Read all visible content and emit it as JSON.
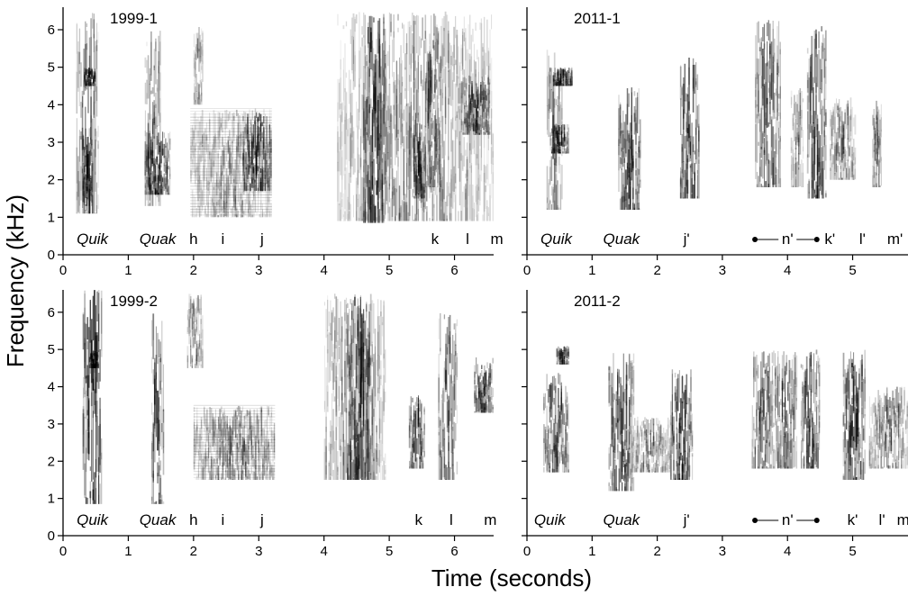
{
  "figure": {
    "ylabel": "Frequency (kHz)",
    "xlabel": "Time (seconds)"
  },
  "chart_data": [
    {
      "type": "heatmap",
      "title": "1999-1",
      "x_ticks": [
        0,
        1,
        2,
        3,
        4,
        5,
        6
      ],
      "y_ticks": [
        0,
        1,
        2,
        3,
        4,
        5,
        6
      ],
      "xlim": [
        0,
        6.6
      ],
      "ylim": [
        0,
        6.6
      ],
      "syllable_labels": [
        {
          "text": "Quik",
          "t": 0.45,
          "italic": true
        },
        {
          "text": "Quak",
          "t": 1.45,
          "italic": true
        },
        {
          "text": "h",
          "t": 2.0
        },
        {
          "text": "i",
          "t": 2.45
        },
        {
          "text": "j",
          "t": 3.05
        },
        {
          "text": "k",
          "t": 5.7
        },
        {
          "text": "l",
          "t": 6.2
        },
        {
          "text": "m",
          "t": 6.65
        }
      ],
      "blobs": [
        {
          "t0": 0.2,
          "t1": 0.55,
          "f0": 1.1,
          "f1": 6.5,
          "d": 0.55
        },
        {
          "t0": 0.3,
          "t1": 0.45,
          "f0": 1.3,
          "f1": 3.5,
          "d": 0.9
        },
        {
          "t0": 0.32,
          "t1": 0.5,
          "f0": 4.5,
          "f1": 5.0,
          "d": 0.95
        },
        {
          "t0": 1.25,
          "t1": 1.5,
          "f0": 1.3,
          "f1": 6.0,
          "d": 0.45
        },
        {
          "t0": 1.25,
          "t1": 1.65,
          "f0": 1.6,
          "f1": 3.3,
          "d": 0.8
        },
        {
          "t0": 2.0,
          "t1": 2.15,
          "f0": 4.0,
          "f1": 6.1,
          "d": 0.3
        },
        {
          "t0": 1.95,
          "t1": 3.2,
          "f0": 1.0,
          "f1": 3.9,
          "d": 0.3,
          "striated": true
        },
        {
          "t0": 2.75,
          "t1": 3.2,
          "f0": 1.7,
          "f1": 3.8,
          "d": 0.8
        },
        {
          "t0": 4.2,
          "t1": 6.6,
          "f0": 0.9,
          "f1": 6.5,
          "d": 0.35
        },
        {
          "t0": 4.6,
          "t1": 4.95,
          "f0": 0.8,
          "f1": 6.4,
          "d": 0.85
        },
        {
          "t0": 5.35,
          "t1": 5.55,
          "f0": 1.5,
          "f1": 3.8,
          "d": 0.75
        },
        {
          "t0": 5.55,
          "t1": 5.8,
          "f0": 1.8,
          "f1": 5.8,
          "d": 0.6
        },
        {
          "t0": 6.1,
          "t1": 6.55,
          "f0": 3.2,
          "f1": 4.8,
          "d": 0.8
        }
      ]
    },
    {
      "type": "heatmap",
      "title": "2011-1",
      "x_ticks": [
        0,
        1,
        2,
        3,
        4,
        5
      ],
      "y_ticks": [],
      "xlim": [
        0,
        5.85
      ],
      "ylim": [
        0,
        6.6
      ],
      "syllable_labels": [
        {
          "text": "Quik",
          "t": 0.45,
          "italic": true
        },
        {
          "text": "Quak",
          "t": 1.45,
          "italic": true
        },
        {
          "text": "j'",
          "t": 2.45
        },
        {
          "text": "n'",
          "t": 4.0
        },
        {
          "text": "k'",
          "t": 4.65
        },
        {
          "text": "l'",
          "t": 5.15
        },
        {
          "text": "m'",
          "t": 5.65
        }
      ],
      "range_marker": {
        "t0": 3.5,
        "t1": 4.45
      },
      "blobs": [
        {
          "t0": 0.3,
          "t1": 0.55,
          "f0": 1.2,
          "f1": 5.5,
          "d": 0.5
        },
        {
          "t0": 0.4,
          "t1": 0.7,
          "f0": 4.5,
          "f1": 5.0,
          "d": 0.9
        },
        {
          "t0": 0.35,
          "t1": 0.65,
          "f0": 2.7,
          "f1": 3.5,
          "d": 0.8
        },
        {
          "t0": 1.4,
          "t1": 1.75,
          "f0": 1.2,
          "f1": 4.5,
          "d": 0.75
        },
        {
          "t0": 2.35,
          "t1": 2.65,
          "f0": 1.5,
          "f1": 5.3,
          "d": 0.8
        },
        {
          "t0": 3.5,
          "t1": 3.9,
          "f0": 1.8,
          "f1": 6.3,
          "d": 0.65
        },
        {
          "t0": 4.05,
          "t1": 4.25,
          "f0": 1.8,
          "f1": 4.5,
          "d": 0.4
        },
        {
          "t0": 4.3,
          "t1": 4.6,
          "f0": 1.5,
          "f1": 6.1,
          "d": 0.75
        },
        {
          "t0": 4.65,
          "t1": 5.05,
          "f0": 2.0,
          "f1": 4.2,
          "d": 0.45
        },
        {
          "t0": 5.3,
          "t1": 5.45,
          "f0": 1.8,
          "f1": 4.2,
          "d": 0.5
        }
      ]
    },
    {
      "type": "heatmap",
      "title": "1999-2",
      "x_ticks": [
        0,
        1,
        2,
        3,
        4,
        5,
        6
      ],
      "y_ticks": [
        0,
        1,
        2,
        3,
        4,
        5,
        6
      ],
      "xlim": [
        0,
        6.6
      ],
      "ylim": [
        0,
        6.6
      ],
      "syllable_labels": [
        {
          "text": "Quik",
          "t": 0.45,
          "italic": true
        },
        {
          "text": "Quak",
          "t": 1.45,
          "italic": true
        },
        {
          "text": "h",
          "t": 2.0
        },
        {
          "text": "i",
          "t": 2.45
        },
        {
          "text": "j",
          "t": 3.05
        },
        {
          "text": "k",
          "t": 5.45
        },
        {
          "text": "l",
          "t": 5.95
        },
        {
          "text": "m",
          "t": 6.55
        }
      ],
      "blobs": [
        {
          "t0": 0.3,
          "t1": 0.6,
          "f0": 0.8,
          "f1": 6.6,
          "d": 0.85
        },
        {
          "t0": 0.4,
          "t1": 0.55,
          "f0": 4.5,
          "f1": 5.0,
          "d": 0.95
        },
        {
          "t0": 1.35,
          "t1": 1.55,
          "f0": 0.8,
          "f1": 6.0,
          "d": 0.7
        },
        {
          "t0": 1.9,
          "t1": 2.15,
          "f0": 4.5,
          "f1": 6.5,
          "d": 0.35
        },
        {
          "t0": 2.0,
          "t1": 3.25,
          "f0": 1.5,
          "f1": 3.5,
          "d": 0.4,
          "striated": true
        },
        {
          "t0": 4.0,
          "t1": 4.95,
          "f0": 1.5,
          "f1": 6.5,
          "d": 0.4
        },
        {
          "t0": 4.35,
          "t1": 4.75,
          "f0": 1.5,
          "f1": 6.5,
          "d": 0.8
        },
        {
          "t0": 5.3,
          "t1": 5.55,
          "f0": 1.8,
          "f1": 3.8,
          "d": 0.75
        },
        {
          "t0": 5.75,
          "t1": 6.05,
          "f0": 1.5,
          "f1": 6.0,
          "d": 0.6
        },
        {
          "t0": 6.3,
          "t1": 6.6,
          "f0": 3.3,
          "f1": 4.8,
          "d": 0.75
        }
      ]
    },
    {
      "type": "heatmap",
      "title": "2011-2",
      "x_ticks": [
        0,
        1,
        2,
        3,
        4,
        5
      ],
      "y_ticks": [],
      "xlim": [
        0,
        5.85
      ],
      "ylim": [
        0,
        6.6
      ],
      "syllable_labels": [
        {
          "text": "Quik",
          "t": 0.35,
          "italic": true
        },
        {
          "text": "Quak",
          "t": 1.45,
          "italic": true
        },
        {
          "text": "j'",
          "t": 2.45
        },
        {
          "text": "n'",
          "t": 4.0
        },
        {
          "text": "k'",
          "t": 5.0
        },
        {
          "text": "l'",
          "t": 5.45
        },
        {
          "text": "m'",
          "t": 5.8
        }
      ],
      "range_marker": {
        "t0": 3.5,
        "t1": 4.45
      },
      "blobs": [
        {
          "t0": 0.25,
          "t1": 0.65,
          "f0": 1.7,
          "f1": 4.4,
          "d": 0.75
        },
        {
          "t0": 0.45,
          "t1": 0.65,
          "f0": 4.6,
          "f1": 5.1,
          "d": 0.9
        },
        {
          "t0": 1.25,
          "t1": 1.65,
          "f0": 1.2,
          "f1": 5.0,
          "d": 0.75
        },
        {
          "t0": 1.6,
          "t1": 2.2,
          "f0": 1.7,
          "f1": 3.2,
          "d": 0.4
        },
        {
          "t0": 2.2,
          "t1": 2.55,
          "f0": 1.5,
          "f1": 4.5,
          "d": 0.75
        },
        {
          "t0": 3.45,
          "t1": 3.8,
          "f0": 1.8,
          "f1": 5.0,
          "d": 0.6
        },
        {
          "t0": 3.8,
          "t1": 4.15,
          "f0": 1.8,
          "f1": 5.0,
          "d": 0.6
        },
        {
          "t0": 4.2,
          "t1": 4.5,
          "f0": 1.8,
          "f1": 5.0,
          "d": 0.7
        },
        {
          "t0": 4.85,
          "t1": 5.2,
          "f0": 1.5,
          "f1": 5.0,
          "d": 0.8
        },
        {
          "t0": 5.25,
          "t1": 5.85,
          "f0": 1.8,
          "f1": 4.0,
          "d": 0.45
        }
      ]
    }
  ]
}
